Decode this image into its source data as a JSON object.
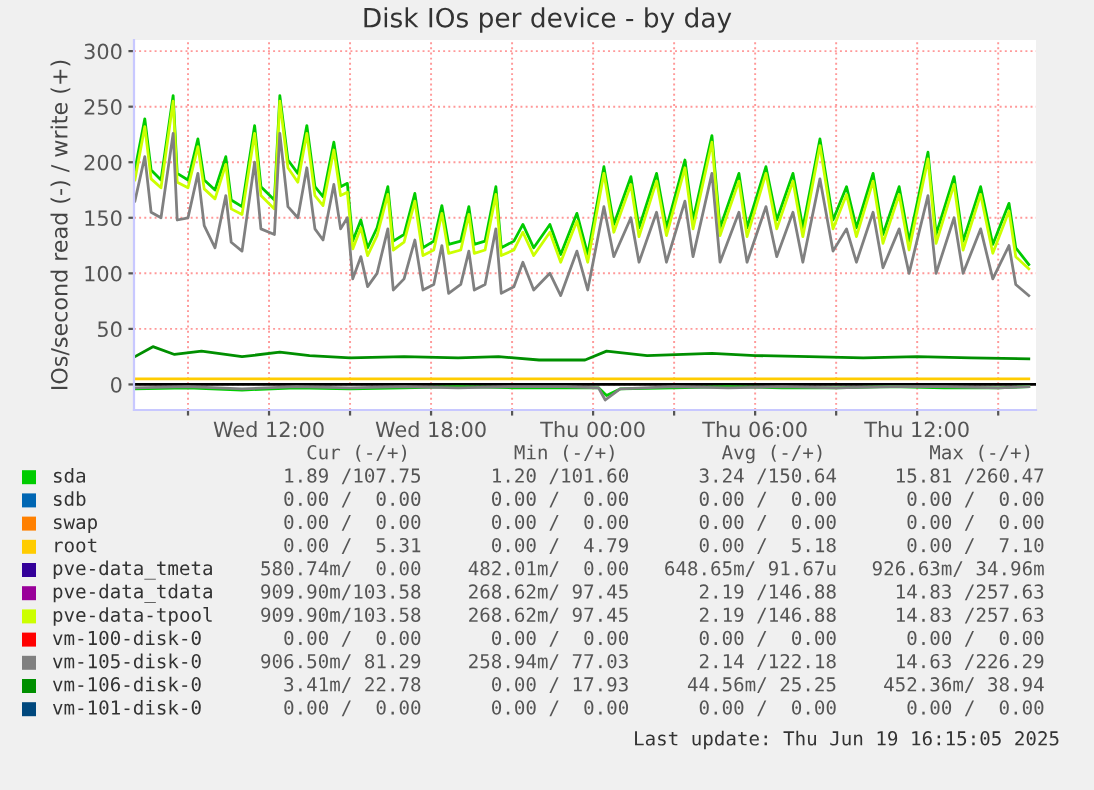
{
  "chart_data": {
    "type": "line",
    "title": "Disk IOs per device - by day",
    "ylabel": "IOs/second read (-) / write (+)",
    "xlim": [
      "2025-06-18T07:00",
      "2025-06-19T16:24"
    ],
    "ylim": [
      -23,
      310
    ],
    "xticks": [
      {
        "value": "2025-06-18T09:00",
        "label": null
      },
      {
        "value": "2025-06-18T12:00",
        "label": "Wed 12:00"
      },
      {
        "value": "2025-06-18T15:00",
        "label": null
      },
      {
        "value": "2025-06-18T18:00",
        "label": "Wed 18:00"
      },
      {
        "value": "2025-06-18T21:00",
        "label": null
      },
      {
        "value": "2025-06-19T00:00",
        "label": "Thu 00:00"
      },
      {
        "value": "2025-06-19T03:00",
        "label": null
      },
      {
        "value": "2025-06-19T06:00",
        "label": "Thu 06:00"
      },
      {
        "value": "2025-06-19T09:00",
        "label": null
      },
      {
        "value": "2025-06-19T12:00",
        "label": "Thu 12:00"
      },
      {
        "value": "2025-06-19T15:00",
        "label": null
      }
    ],
    "yticks": [
      0,
      50,
      100,
      150,
      200,
      250,
      300
    ],
    "grid": true,
    "legend": "bottom",
    "marker": "none",
    "line_style": "solid",
    "series": [
      {
        "name": "sda",
        "color": "#00cc00",
        "x": [
          "2025-06-18T07:02",
          "2025-06-18T07:24",
          "2025-06-18T07:38",
          "2025-06-18T08:00",
          "2025-06-18T08:27",
          "2025-06-18T08:36",
          "2025-06-18T09:00",
          "2025-06-18T09:22",
          "2025-06-18T09:36",
          "2025-06-18T10:00",
          "2025-06-18T10:24",
          "2025-06-18T10:36",
          "2025-06-18T11:00",
          "2025-06-18T11:28",
          "2025-06-18T11:42",
          "2025-06-18T12:12",
          "2025-06-18T12:24",
          "2025-06-18T12:42",
          "2025-06-18T13:04",
          "2025-06-18T13:24",
          "2025-06-18T13:42",
          "2025-06-18T14:00",
          "2025-06-18T14:24",
          "2025-06-18T14:39",
          "2025-06-18T14:54",
          "2025-06-18T15:06",
          "2025-06-18T15:24",
          "2025-06-18T15:39",
          "2025-06-18T16:00",
          "2025-06-18T16:24",
          "2025-06-18T16:36",
          "2025-06-18T17:00",
          "2025-06-18T17:24",
          "2025-06-18T17:42",
          "2025-06-18T18:06",
          "2025-06-18T18:24",
          "2025-06-18T18:39",
          "2025-06-18T19:06",
          "2025-06-18T19:24",
          "2025-06-18T19:36",
          "2025-06-18T20:00",
          "2025-06-18T20:24",
          "2025-06-18T20:36",
          "2025-06-18T21:04",
          "2025-06-18T21:24",
          "2025-06-18T21:48",
          "2025-06-18T22:24",
          "2025-06-18T22:48",
          "2025-06-18T23:24",
          "2025-06-18T23:48",
          "2025-06-19T00:24",
          "2025-06-19T00:46",
          "2025-06-19T01:24",
          "2025-06-19T01:42",
          "2025-06-19T02:21",
          "2025-06-19T02:43",
          "2025-06-19T03:24",
          "2025-06-19T03:42",
          "2025-06-19T04:24",
          "2025-06-19T04:42",
          "2025-06-19T05:24",
          "2025-06-19T05:42",
          "2025-06-19T06:24",
          "2025-06-19T06:48",
          "2025-06-19T07:24",
          "2025-06-19T07:46",
          "2025-06-19T08:24",
          "2025-06-19T08:53",
          "2025-06-19T09:23",
          "2025-06-19T09:45",
          "2025-06-19T10:22",
          "2025-06-19T10:44",
          "2025-06-19T11:20",
          "2025-06-19T11:42",
          "2025-06-19T12:24",
          "2025-06-19T12:42",
          "2025-06-19T13:22",
          "2025-06-19T13:42",
          "2025-06-19T14:21",
          "2025-06-19T14:48",
          "2025-06-19T15:24",
          "2025-06-19T15:39",
          "2025-06-19T16:08"
        ],
        "values": [
          193,
          239,
          193,
          184,
          260,
          190,
          184,
          221,
          184,
          175,
          205,
          166,
          160,
          233,
          178,
          166,
          260,
          202,
          190,
          233,
          178,
          169,
          218,
          178,
          181,
          129,
          148,
          123,
          141,
          178,
          129,
          135,
          172,
          123,
          129,
          161,
          126,
          129,
          160,
          126,
          129,
          178,
          123,
          129,
          144,
          123,
          144,
          117,
          154,
          117,
          196,
          144,
          187,
          141,
          190,
          141,
          202,
          148,
          224,
          141,
          190,
          141,
          196,
          148,
          190,
          141,
          221,
          148,
          178,
          141,
          190,
          135,
          178,
          129,
          209,
          135,
          187,
          129,
          178,
          126,
          163,
          123,
          108
        ]
      },
      {
        "color": "#00cc00",
        "x": [
          "2025-06-18T07:02",
          "2025-06-18T09:00",
          "2025-06-18T11:00",
          "2025-06-18T13:00",
          "2025-06-18T15:00",
          "2025-06-18T17:00",
          "2025-06-18T19:00",
          "2025-06-18T21:00",
          "2025-06-18T23:00",
          "2025-06-19T00:12",
          "2025-06-19T00:30",
          "2025-06-19T01:00",
          "2025-06-19T03:00",
          "2025-06-19T05:00",
          "2025-06-19T07:00",
          "2025-06-19T09:00",
          "2025-06-19T11:00",
          "2025-06-19T13:00",
          "2025-06-19T15:00",
          "2025-06-19T16:08"
        ],
        "values": [
          -4,
          -3,
          -5,
          -3,
          -4,
          -3,
          -2,
          -3,
          -3,
          -3,
          -10,
          -4,
          -3,
          -2,
          -3,
          -3,
          -2,
          -3,
          -3,
          -2
        ]
      },
      {
        "name": "sdb",
        "color": "#0066b3"
      },
      {
        "name": "swap",
        "color": "#ff8000"
      },
      {
        "name": "root",
        "color": "#ffcc00",
        "x": [
          "2025-06-18T07:02",
          "2025-06-19T16:08"
        ],
        "values": [
          5,
          5
        ]
      },
      {
        "name": "pve-data_tmeta",
        "color": "#330099"
      },
      {
        "name": "pve-data_tdata",
        "color": "#990099"
      },
      {
        "name": "pve-data-tpool",
        "color": "#ccff00",
        "x": [
          "2025-06-18T07:02",
          "2025-06-18T07:24",
          "2025-06-18T07:38",
          "2025-06-18T08:00",
          "2025-06-18T08:27",
          "2025-06-18T08:36",
          "2025-06-18T09:00",
          "2025-06-18T09:22",
          "2025-06-18T09:36",
          "2025-06-18T10:00",
          "2025-06-18T10:24",
          "2025-06-18T10:36",
          "2025-06-18T11:00",
          "2025-06-18T11:28",
          "2025-06-18T11:42",
          "2025-06-18T12:12",
          "2025-06-18T12:24",
          "2025-06-18T12:42",
          "2025-06-18T13:04",
          "2025-06-18T13:24",
          "2025-06-18T13:42",
          "2025-06-18T14:00",
          "2025-06-18T14:24",
          "2025-06-18T14:39",
          "2025-06-18T14:54",
          "2025-06-18T15:06",
          "2025-06-18T15:24",
          "2025-06-18T15:39",
          "2025-06-18T16:00",
          "2025-06-18T16:24",
          "2025-06-18T16:36",
          "2025-06-18T17:00",
          "2025-06-18T17:24",
          "2025-06-18T17:42",
          "2025-06-18T18:06",
          "2025-06-18T18:24",
          "2025-06-18T18:39",
          "2025-06-18T19:06",
          "2025-06-18T19:24",
          "2025-06-18T19:36",
          "2025-06-18T20:00",
          "2025-06-18T20:24",
          "2025-06-18T20:36",
          "2025-06-18T21:04",
          "2025-06-18T21:24",
          "2025-06-18T21:48",
          "2025-06-18T22:24",
          "2025-06-18T22:48",
          "2025-06-18T23:24",
          "2025-06-18T23:48",
          "2025-06-19T00:24",
          "2025-06-19T00:46",
          "2025-06-19T01:24",
          "2025-06-19T01:42",
          "2025-06-19T02:21",
          "2025-06-19T02:43",
          "2025-06-19T03:24",
          "2025-06-19T03:42",
          "2025-06-19T04:24",
          "2025-06-19T04:42",
          "2025-06-19T05:24",
          "2025-06-19T05:42",
          "2025-06-19T06:24",
          "2025-06-19T06:48",
          "2025-06-19T07:24",
          "2025-06-19T07:46",
          "2025-06-19T08:24",
          "2025-06-19T08:53",
          "2025-06-19T09:23",
          "2025-06-19T09:45",
          "2025-06-19T10:22",
          "2025-06-19T10:44",
          "2025-06-19T11:20",
          "2025-06-19T11:42",
          "2025-06-19T12:24",
          "2025-06-19T12:42",
          "2025-06-19T13:22",
          "2025-06-19T13:42",
          "2025-06-19T14:21",
          "2025-06-19T14:48",
          "2025-06-19T15:24",
          "2025-06-19T15:39",
          "2025-06-19T16:08"
        ],
        "values": [
          184,
          232,
          185,
          177,
          255,
          182,
          177,
          214,
          176,
          167,
          198,
          158,
          153,
          226,
          170,
          158,
          255,
          195,
          182,
          226,
          170,
          161,
          211,
          170,
          173,
          122,
          141,
          116,
          134,
          171,
          121,
          128,
          165,
          116,
          121,
          154,
          118,
          121,
          153,
          118,
          121,
          171,
          116,
          121,
          137,
          116,
          137,
          110,
          147,
          110,
          190,
          137,
          180,
          133,
          183,
          134,
          195,
          140,
          218,
          134,
          183,
          133,
          190,
          140,
          183,
          133,
          215,
          140,
          171,
          133,
          183,
          127,
          171,
          121,
          203,
          127,
          180,
          121,
          171,
          118,
          156,
          115,
          104
        ]
      },
      {
        "name": "vm-100-disk-0",
        "color": "#ff0000"
      },
      {
        "name": "vm-105-disk-0",
        "color": "#808080",
        "x": [
          "2025-06-18T07:02",
          "2025-06-18T07:24",
          "2025-06-18T07:38",
          "2025-06-18T08:00",
          "2025-06-18T08:27",
          "2025-06-18T08:36",
          "2025-06-18T09:00",
          "2025-06-18T09:22",
          "2025-06-18T09:36",
          "2025-06-18T10:00",
          "2025-06-18T10:24",
          "2025-06-18T10:36",
          "2025-06-18T11:00",
          "2025-06-18T11:28",
          "2025-06-18T11:42",
          "2025-06-18T12:12",
          "2025-06-18T12:24",
          "2025-06-18T12:42",
          "2025-06-18T13:04",
          "2025-06-18T13:24",
          "2025-06-18T13:42",
          "2025-06-18T14:00",
          "2025-06-18T14:24",
          "2025-06-18T14:39",
          "2025-06-18T14:54",
          "2025-06-18T15:06",
          "2025-06-18T15:24",
          "2025-06-18T15:39",
          "2025-06-18T16:00",
          "2025-06-18T16:24",
          "2025-06-18T16:36",
          "2025-06-18T17:00",
          "2025-06-18T17:24",
          "2025-06-18T17:42",
          "2025-06-18T18:06",
          "2025-06-18T18:24",
          "2025-06-18T18:39",
          "2025-06-18T19:06",
          "2025-06-18T19:24",
          "2025-06-18T19:36",
          "2025-06-18T20:00",
          "2025-06-18T20:24",
          "2025-06-18T20:36",
          "2025-06-18T21:04",
          "2025-06-18T21:24",
          "2025-06-18T21:48",
          "2025-06-18T22:24",
          "2025-06-18T22:48",
          "2025-06-18T23:24",
          "2025-06-18T23:48",
          "2025-06-19T00:24",
          "2025-06-19T00:46",
          "2025-06-19T01:24",
          "2025-06-19T01:42",
          "2025-06-19T02:21",
          "2025-06-19T02:43",
          "2025-06-19T03:24",
          "2025-06-19T03:42",
          "2025-06-19T04:24",
          "2025-06-19T04:42",
          "2025-06-19T05:24",
          "2025-06-19T05:42",
          "2025-06-19T06:24",
          "2025-06-19T06:48",
          "2025-06-19T07:24",
          "2025-06-19T07:46",
          "2025-06-19T08:24",
          "2025-06-19T08:53",
          "2025-06-19T09:23",
          "2025-06-19T09:45",
          "2025-06-19T10:22",
          "2025-06-19T10:44",
          "2025-06-19T11:20",
          "2025-06-19T11:42",
          "2025-06-19T12:24",
          "2025-06-19T12:42",
          "2025-06-19T13:22",
          "2025-06-19T13:42",
          "2025-06-19T14:21",
          "2025-06-19T14:48",
          "2025-06-19T15:24",
          "2025-06-19T15:39",
          "2025-06-19T16:08"
        ],
        "values": [
          165,
          205,
          155,
          150,
          226,
          148,
          150,
          190,
          143,
          123,
          170,
          128,
          120,
          200,
          140,
          135,
          226,
          160,
          150,
          195,
          140,
          130,
          180,
          140,
          150,
          95,
          115,
          88,
          100,
          140,
          85,
          95,
          130,
          85,
          90,
          125,
          82,
          90,
          120,
          85,
          90,
          140,
          82,
          88,
          110,
          85,
          100,
          80,
          120,
          85,
          160,
          115,
          150,
          110,
          155,
          110,
          165,
          115,
          190,
          110,
          155,
          110,
          160,
          115,
          155,
          110,
          185,
          120,
          140,
          110,
          155,
          105,
          140,
          100,
          170,
          100,
          150,
          100,
          140,
          95,
          125,
          90,
          80
        ]
      },
      {
        "color": "#808080",
        "x": [
          "2025-06-18T07:02",
          "2025-06-18T09:00",
          "2025-06-18T11:00",
          "2025-06-18T13:00",
          "2025-06-18T15:00",
          "2025-06-18T17:00",
          "2025-06-18T19:00",
          "2025-06-18T21:00",
          "2025-06-18T23:00",
          "2025-06-19T00:12",
          "2025-06-19T00:27",
          "2025-06-19T01:00",
          "2025-06-19T03:00",
          "2025-06-19T05:00",
          "2025-06-19T07:00",
          "2025-06-19T09:00",
          "2025-06-19T11:00",
          "2025-06-19T13:00",
          "2025-06-19T15:00",
          "2025-06-19T16:08"
        ],
        "values": [
          -3,
          -2,
          -4,
          -2,
          -3,
          -2,
          -3,
          -2,
          -2,
          -3,
          -14,
          -4,
          -2,
          -3,
          -2,
          -3,
          -2,
          -2,
          -3,
          -2
        ]
      },
      {
        "name": "vm-106-disk-0",
        "color": "#008f00",
        "x": [
          "2025-06-18T07:02",
          "2025-06-18T07:42",
          "2025-06-18T08:30",
          "2025-06-18T09:30",
          "2025-06-18T11:00",
          "2025-06-18T12:24",
          "2025-06-18T13:30",
          "2025-06-18T15:00",
          "2025-06-18T17:00",
          "2025-06-18T19:00",
          "2025-06-18T20:30",
          "2025-06-18T22:00",
          "2025-06-18T23:42",
          "2025-06-19T00:30",
          "2025-06-19T02:00",
          "2025-06-19T04:24",
          "2025-06-19T06:00",
          "2025-06-19T08:00",
          "2025-06-19T10:00",
          "2025-06-19T12:00",
          "2025-06-19T14:00",
          "2025-06-19T16:08"
        ],
        "values": [
          25,
          34,
          27,
          30,
          25,
          29,
          26,
          24,
          25,
          24,
          25,
          22,
          22,
          30,
          26,
          28,
          26,
          25,
          24,
          25,
          24,
          23
        ]
      },
      {
        "name": "vm-101-disk-0",
        "color": "#00487d"
      }
    ],
    "ref_lines": [
      {
        "axis": "y",
        "value": 0,
        "color": "#000000"
      }
    ],
    "annotations": [
      "    Cur (-/+)         Min (-/+)         Avg (-/+)         Max (-/+)",
      "  1.89 /107.75      1.20 /101.60      3.24 /150.64     15.81 /260.47",
      "  0.00 /  0.00      0.00 /  0.00      0.00 /  0.00      0.00 /  0.00",
      "  0.00 /  0.00      0.00 /  0.00      0.00 /  0.00      0.00 /  0.00",
      "  0.00 /  5.31      0.00 /  4.79      0.00 /  5.18      0.00 /  7.10",
      "580.74m/  0.00    482.01m/  0.00   648.65m/ 91.67u   926.63m/ 34.96m",
      "909.90m/103.58    268.62m/ 97.45      2.19 /146.88     14.83 /257.63",
      "909.90m/103.58    268.62m/ 97.45      2.19 /146.88     14.83 /257.63",
      "  0.00 /  0.00      0.00 /  0.00      0.00 /  0.00      0.00 /  0.00",
      "906.50m/ 81.29    258.94m/ 77.03      2.14 /122.18     14.63 /226.29",
      "  3.41m/ 22.78      0.00 / 17.93     44.56m/ 25.25    452.36m/ 38.94",
      "  0.00 /  0.00      0.00 /  0.00      0.00 /  0.00      0.00 /  0.00",
      "Last update: Thu Jun 19 16:15:05 2025"
    ]
  }
}
